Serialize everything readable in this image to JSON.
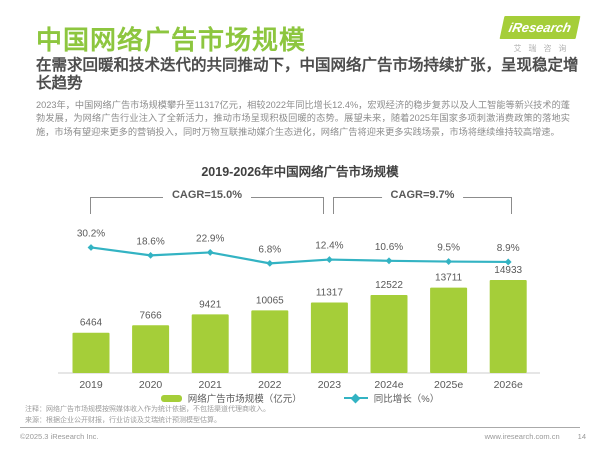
{
  "header": {
    "title": "中国网络广告市场规模",
    "logo": {
      "brand": "iResearch",
      "brand_cn": "艾瑞咨询"
    }
  },
  "subtitle": "在需求回暖和技术迭代的共同推动下，中国网络广告市场持续扩张，呈现稳定增长趋势",
  "body_paragraph": "2023年，中国网络广告市场规模攀升至11317亿元，相较2022年同比增长12.4%，宏观经济的稳步复苏以及人工智能等新兴技术的蓬勃发展，为网络广告行业注入了全新活力，推动市场呈现积极回暖的态势。展望未来，随着2025年国家多项刺激消费政策的落地实施，市场有望迎来更多的营销投入，同时万物互联推动媒介生态进化，网络广告将迎来更多实践场景，市场将继续维持较高增速。",
  "chart_data": {
    "type": "bar",
    "title": "2019-2026年中国网络广告市场规模",
    "categories": [
      "2019",
      "2020",
      "2021",
      "2022",
      "2023",
      "2024e",
      "2025e",
      "2026e"
    ],
    "series": [
      {
        "name": "网络广告市场规模（亿元）",
        "type": "bar",
        "values": [
          6464,
          7666,
          9421,
          10065,
          11317,
          12522,
          13711,
          14933
        ],
        "color": "#a5ce39"
      },
      {
        "name": "同比增长（%）",
        "type": "line",
        "values": [
          30.2,
          18.6,
          22.9,
          6.8,
          12.4,
          10.6,
          9.5,
          8.9
        ],
        "labels": [
          "30.2%",
          "18.6%",
          "22.9%",
          "6.8%",
          "12.4%",
          "10.6%",
          "9.5%",
          "8.9%"
        ],
        "color": "#33b3c3"
      }
    ],
    "annotations": [
      {
        "label": "CAGR=15.0%",
        "span": [
          "2019",
          "2023"
        ]
      },
      {
        "label": "CAGR=9.7%",
        "span": [
          "2023",
          "2026e"
        ]
      }
    ],
    "xlabel": "",
    "ylabel": "",
    "grid": false,
    "legend_position": "bottom"
  },
  "notes": [
    "注释：网络广告市场规模按照媒体收入作为统计依据，不包括渠道代理商收入。",
    "来源：根据企业公开财报，行业访谈及艾瑞统计预测模型估算。"
  ],
  "footer": {
    "copyright": "©2025.3 iResearch Inc.",
    "website": "www.iresearch.com.cn",
    "page": "14"
  },
  "colors": {
    "accent_green": "#8dc63f",
    "bar_green": "#a5ce39",
    "line_teal": "#33b3c3"
  }
}
